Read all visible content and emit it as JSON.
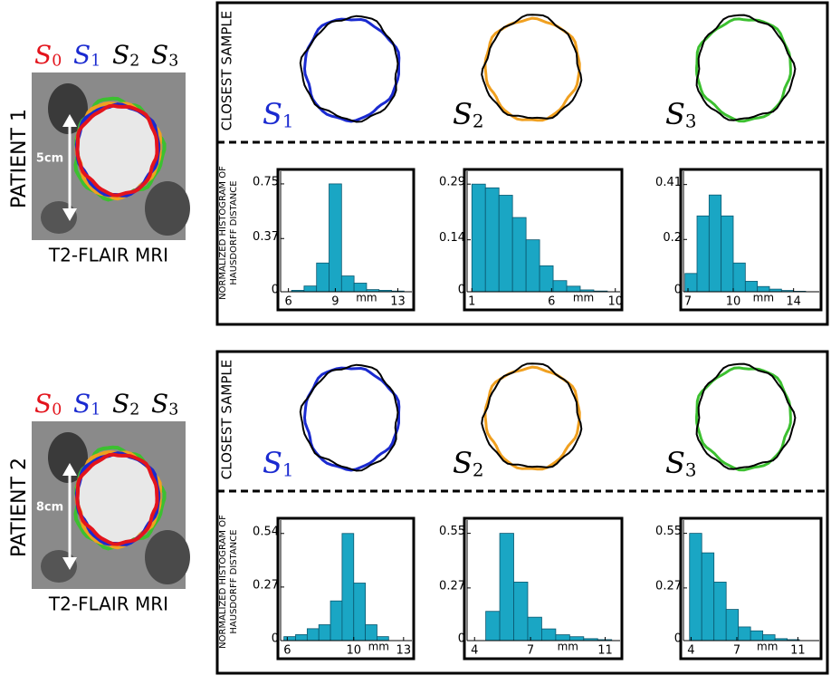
{
  "patients": [
    {
      "label": "PATIENT 1",
      "scale_label": "5cm",
      "image_caption": "T2-FLAIR MRI",
      "legend": [
        {
          "symbol": "S",
          "sub": "0",
          "color": "#e3141c"
        },
        {
          "symbol": "S",
          "sub": "1",
          "color": "#1a2ad0"
        },
        {
          "symbol": "S",
          "sub": "2",
          "color": "#000000"
        },
        {
          "symbol": "S",
          "sub": "3",
          "color": "#000000"
        }
      ],
      "sample_heading": "CLOSEST SAMPLE",
      "histogram_heading": [
        "NORMALIZED HISTOGRAM OF",
        "HAUSDORFF DISTANCE"
      ],
      "samples": [
        {
          "symbol": "S",
          "sub": "1",
          "color": "#1a2ad0"
        },
        {
          "symbol": "S",
          "sub": "2",
          "color": "#000000"
        },
        {
          "symbol": "S",
          "sub": "3",
          "color": "#000000"
        }
      ],
      "charts": [
        {
          "type": "histogram",
          "color": "#1aa6c4",
          "xlabel": "mm",
          "bins": [
            6.2,
            7.0,
            7.8,
            8.6,
            9.4,
            10.2,
            11.0,
            11.8,
            12.6,
            13.4
          ],
          "values": [
            0.01,
            0.04,
            0.2,
            0.75,
            0.11,
            0.06,
            0.015,
            0.01,
            0.005
          ],
          "xlim": [
            5.5,
            13.9
          ],
          "xticks": [
            6,
            9,
            13
          ],
          "ylim": [
            0,
            0.8
          ],
          "yticks": [
            0,
            0.37,
            0.75
          ]
        },
        {
          "type": "histogram",
          "color": "#1aa6c4",
          "xlabel": "mm",
          "bins": [
            1,
            1.85,
            2.7,
            3.55,
            4.4,
            5.25,
            6.1,
            6.95,
            7.8,
            8.65,
            9.5
          ],
          "values": [
            0.29,
            0.28,
            0.26,
            0.2,
            0.14,
            0.07,
            0.03,
            0.015,
            0.005,
            0.002
          ],
          "xlim": [
            0.7,
            10.3
          ],
          "xticks": [
            1,
            6,
            10
          ],
          "ylim": [
            0,
            0.31
          ],
          "yticks": [
            0,
            0.14,
            0.29
          ]
        },
        {
          "type": "histogram",
          "color": "#1aa6c4",
          "xlabel": "mm",
          "bins": [
            6.8,
            7.6,
            8.4,
            9.2,
            10.0,
            10.8,
            11.6,
            12.4,
            13.2,
            14.0,
            14.8
          ],
          "values": [
            0.07,
            0.29,
            0.37,
            0.29,
            0.11,
            0.04,
            0.02,
            0.01,
            0.005,
            0.002
          ],
          "xlim": [
            6.7,
            15.7
          ],
          "xticks": [
            7,
            10,
            14
          ],
          "ylim": [
            0,
            0.44
          ],
          "yticks": [
            0,
            0.2,
            0.41
          ]
        }
      ]
    },
    {
      "label": "PATIENT 2",
      "scale_label": "8cm",
      "image_caption": "T2-FLAIR MRI",
      "legend": [
        {
          "symbol": "S",
          "sub": "0",
          "color": "#e3141c"
        },
        {
          "symbol": "S",
          "sub": "1",
          "color": "#1a2ad0"
        },
        {
          "symbol": "S",
          "sub": "2",
          "color": "#000000"
        },
        {
          "symbol": "S",
          "sub": "3",
          "color": "#000000"
        }
      ],
      "sample_heading": "CLOSEST SAMPLE",
      "histogram_heading": [
        "NORMALIZED HISTOGRAM OF",
        "HAUSDORFF DISTANCE"
      ],
      "samples": [
        {
          "symbol": "S",
          "sub": "1",
          "color": "#1a2ad0"
        },
        {
          "symbol": "S",
          "sub": "2",
          "color": "#000000"
        },
        {
          "symbol": "S",
          "sub": "3",
          "color": "#000000"
        }
      ],
      "charts": [
        {
          "type": "histogram",
          "color": "#1aa6c4",
          "xlabel": "mm",
          "bins": [
            5.8,
            6.5,
            7.2,
            7.9,
            8.6,
            9.3,
            10.0,
            10.7,
            11.4,
            12.1
          ],
          "values": [
            0.02,
            0.03,
            0.06,
            0.08,
            0.2,
            0.54,
            0.29,
            0.08,
            0.02
          ],
          "xlim": [
            5.6,
            13.5
          ],
          "xticks": [
            6,
            10,
            13
          ],
          "ylim": [
            0,
            0.58
          ],
          "yticks": [
            0,
            0.27,
            0.54
          ]
        },
        {
          "type": "histogram",
          "color": "#1aa6c4",
          "xlabel": "mm",
          "bins": [
            4.6,
            5.35,
            6.1,
            6.85,
            7.6,
            8.35,
            9.1,
            9.85,
            10.6,
            11.35
          ],
          "values": [
            0.15,
            0.55,
            0.3,
            0.12,
            0.06,
            0.03,
            0.02,
            0.01,
            0.005
          ],
          "xlim": [
            3.6,
            11.8
          ],
          "xticks": [
            4,
            7,
            11
          ],
          "ylim": [
            0,
            0.59
          ],
          "yticks": [
            0,
            0.27,
            0.55
          ]
        },
        {
          "type": "histogram",
          "color": "#1aa6c4",
          "xlabel": "mm",
          "bins": [
            3.9,
            4.7,
            5.5,
            6.3,
            7.1,
            7.9,
            8.7,
            9.5,
            10.3,
            11.1
          ],
          "values": [
            0.55,
            0.45,
            0.3,
            0.16,
            0.07,
            0.05,
            0.03,
            0.01,
            0.005
          ],
          "xlim": [
            3.5,
            12.4
          ],
          "xticks": [
            4,
            7,
            11
          ],
          "ylim": [
            0,
            0.59
          ],
          "yticks": [
            0,
            0.27,
            0.55
          ]
        }
      ]
    }
  ]
}
